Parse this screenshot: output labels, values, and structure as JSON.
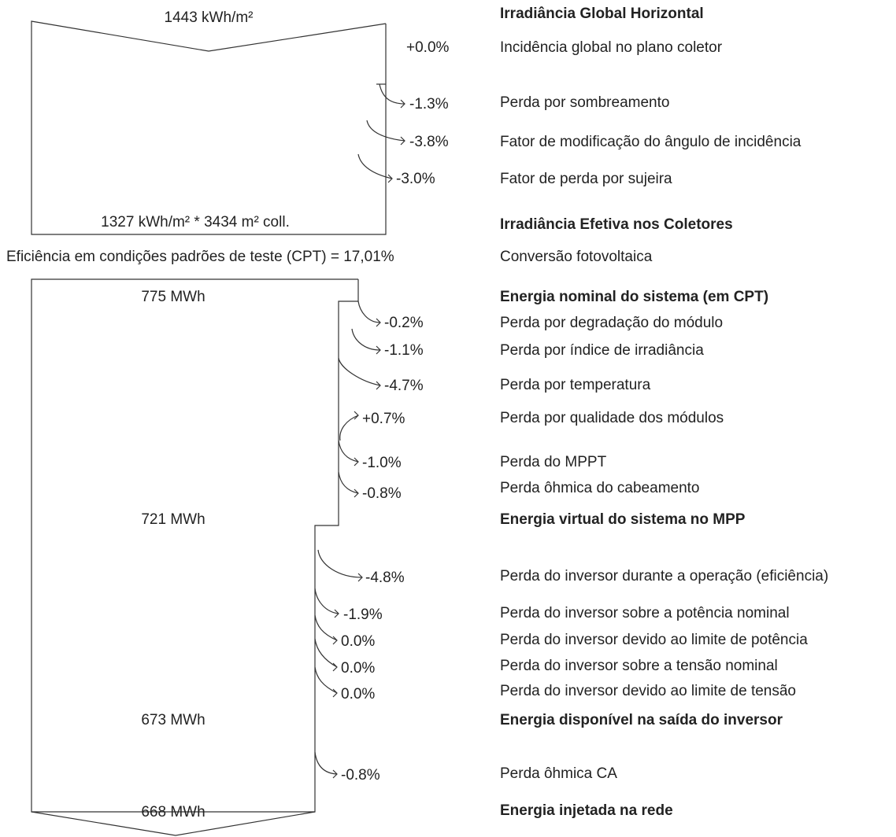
{
  "values": {
    "top_in": "1443 kWh/m²",
    "top_out": "1327 kWh/m² * 3434 m² coll.",
    "efficiency": "Eficiência em condições padrões de teste (CPT) = 17,01%",
    "nominal": "775 MWh",
    "virtual": "721 MWh",
    "available": "673 MWh",
    "grid": "668 MWh"
  },
  "losses": [
    {
      "pct": "+0.0%",
      "label": "Incidência global no plano coletor"
    },
    {
      "pct": "-1.3%",
      "label": "Perda por sombreamento"
    },
    {
      "pct": "-3.8%",
      "label": "Fator de modificação do ângulo de incidência"
    },
    {
      "pct": "-3.0%",
      "label": "Fator de perda por sujeira"
    },
    {
      "pct": "-0.2%",
      "label": "Perda por degradação do módulo"
    },
    {
      "pct": "-1.1%",
      "label": "Perda por índice de irradiância"
    },
    {
      "pct": "-4.7%",
      "label": "Perda por temperatura"
    },
    {
      "pct": "+0.7%",
      "label": "Perda por qualidade dos módulos"
    },
    {
      "pct": "-1.0%",
      "label": "Perda do MPPT"
    },
    {
      "pct": "-0.8%",
      "label": "Perda ôhmica do cabeamento"
    },
    {
      "pct": "-4.8%",
      "label": "Perda do inversor durante a operação (eficiência)"
    },
    {
      "pct": "-1.9%",
      "label": "Perda do inversor sobre a potência nominal"
    },
    {
      "pct": "0.0%",
      "label": "Perda do inversor devido ao limite de potência"
    },
    {
      "pct": "0.0%",
      "label": "Perda do inversor sobre a tensão nominal"
    },
    {
      "pct": "0.0%",
      "label": "Perda do inversor devido ao limite de tensão"
    },
    {
      "pct": "-0.8%",
      "label": "Perda ôhmica CA"
    }
  ],
  "stages": {
    "ghi": "Irradiância Global Horizontal",
    "effective": "Irradiância Efetiva nos Coletores",
    "conversion": "Conversão fotovoltaica",
    "nominal": "Energia nominal do sistema (em CPT)",
    "virtual": "Energia virtual do sistema no MPP",
    "available": "Energia disponível na saída do inversor",
    "grid": "Energia injetada na rede"
  }
}
